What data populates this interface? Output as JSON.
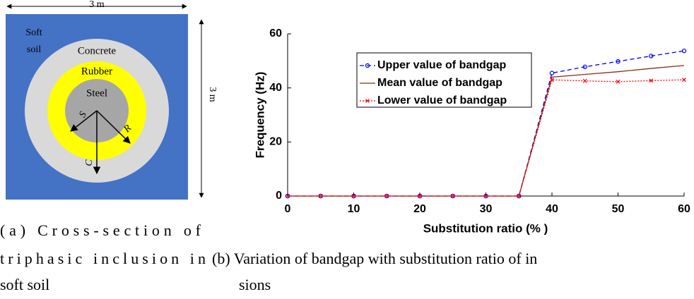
{
  "figure_a": {
    "width_label": "3 m",
    "height_label": "3 m",
    "soil_label": [
      "Soft",
      "soil"
    ],
    "concrete_label": "Concrete",
    "rubber_label": "Rubber",
    "steel_label": "Steel",
    "radius_s": "S",
    "radius_r": "R",
    "radius_c": "C",
    "caption_lines": [
      "(a) Cross-section of",
      "triphasic inclusion in",
      "soft soil"
    ]
  },
  "chart_data": {
    "type": "line",
    "xlabel": "Substitution ratio (% )",
    "ylabel": "Frequency (Hz)",
    "x": [
      0,
      5,
      10,
      15,
      20,
      25,
      30,
      35,
      40,
      45,
      50,
      55,
      60
    ],
    "series": [
      {
        "name": "Upper value of bandgap",
        "color": "#0000ff",
        "dash": "dashed",
        "marker": "circle",
        "values": [
          0,
          0,
          0,
          0,
          0,
          0,
          0,
          0,
          45.5,
          47.8,
          49.8,
          51.8,
          53.7
        ]
      },
      {
        "name": "Mean value of bandgap",
        "color": "#8b2f12",
        "dash": "solid",
        "marker": "none",
        "values": [
          0,
          0,
          0,
          0,
          0,
          0,
          0,
          0,
          44,
          45,
          46,
          47.2,
          48.3
        ]
      },
      {
        "name": "Lower value of bandgap",
        "color": "#ff0000",
        "dash": "dotted",
        "marker": "x",
        "values": [
          0,
          0,
          0,
          0,
          0,
          0,
          0,
          0,
          43,
          42.6,
          42.3,
          42.7,
          43
        ]
      }
    ],
    "xlim": [
      0,
      60
    ],
    "xticks": [
      0,
      10,
      20,
      30,
      40,
      50,
      60
    ],
    "ylim": [
      0,
      60
    ],
    "yticks": [
      0,
      20,
      40,
      60
    ],
    "caption_lines": [
      "(b) Variation of bandgap with substitution ratio of in",
      "sions"
    ]
  }
}
